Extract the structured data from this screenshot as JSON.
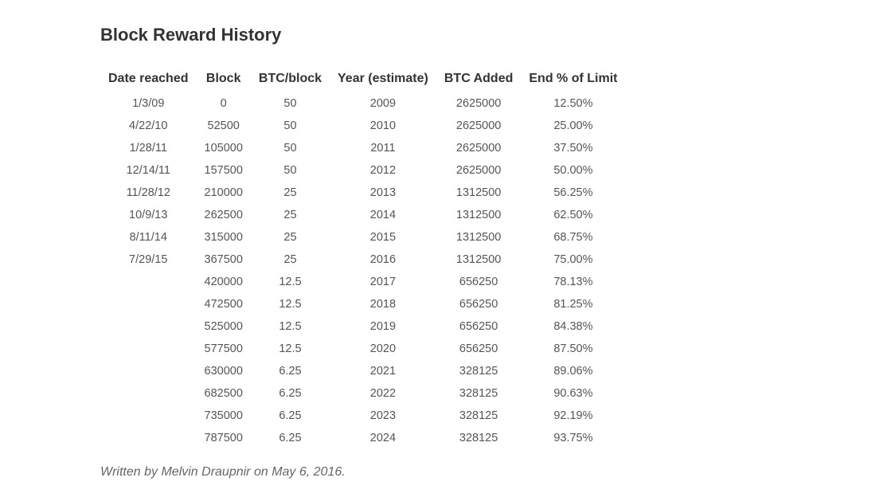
{
  "page_title": "Block Reward History",
  "table": {
    "headers": [
      "Date reached",
      "Block",
      "BTC/block",
      "Year (estimate)",
      "BTC Added",
      "End % of Limit"
    ],
    "rows": [
      [
        "1/3/09",
        "0",
        "50",
        "2009",
        "2625000",
        "12.50%"
      ],
      [
        "4/22/10",
        "52500",
        "50",
        "2010",
        "2625000",
        "25.00%"
      ],
      [
        "1/28/11",
        "105000",
        "50",
        "2011",
        "2625000",
        "37.50%"
      ],
      [
        "12/14/11",
        "157500",
        "50",
        "2012",
        "2625000",
        "50.00%"
      ],
      [
        "11/28/12",
        "210000",
        "25",
        "2013",
        "1312500",
        "56.25%"
      ],
      [
        "10/9/13",
        "262500",
        "25",
        "2014",
        "1312500",
        "62.50%"
      ],
      [
        "8/11/14",
        "315000",
        "25",
        "2015",
        "1312500",
        "68.75%"
      ],
      [
        "7/29/15",
        "367500",
        "25",
        "2016",
        "1312500",
        "75.00%"
      ],
      [
        "",
        "420000",
        "12.5",
        "2017",
        "656250",
        "78.13%"
      ],
      [
        "",
        "472500",
        "12.5",
        "2018",
        "656250",
        "81.25%"
      ],
      [
        "",
        "525000",
        "12.5",
        "2019",
        "656250",
        "84.38%"
      ],
      [
        "",
        "577500",
        "12.5",
        "2020",
        "656250",
        "87.50%"
      ],
      [
        "",
        "630000",
        "6.25",
        "2021",
        "328125",
        "89.06%"
      ],
      [
        "",
        "682500",
        "6.25",
        "2022",
        "328125",
        "90.63%"
      ],
      [
        "",
        "735000",
        "6.25",
        "2023",
        "328125",
        "92.19%"
      ],
      [
        "",
        "787500",
        "6.25",
        "2024",
        "328125",
        "93.75%"
      ]
    ]
  },
  "byline": "Written by Melvin Draupnir on May 6, 2016."
}
